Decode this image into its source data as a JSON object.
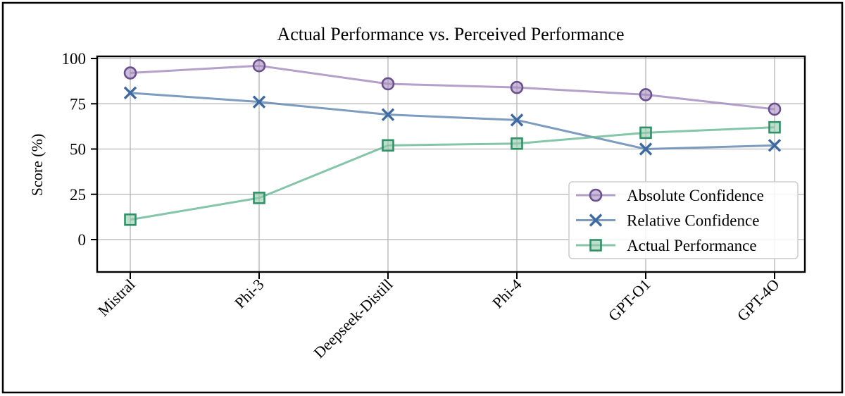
{
  "figure": {
    "background": "#ffffff",
    "border_color": "#000000",
    "grid_color": "#b5b5b5",
    "spine_color": "#000000"
  },
  "chart_data": {
    "type": "line",
    "title": "Actual Performance vs. Perceived Performance",
    "xlabel": "",
    "ylabel": "Score (%)",
    "categories": [
      "Mistral",
      "Phi-3",
      "Deepseek-Distill",
      "Phi-4",
      "GPT-O1",
      "GPT-4O"
    ],
    "yticks": [
      0,
      25,
      50,
      75,
      100
    ],
    "ylim": [
      -18,
      101
    ],
    "grid": true,
    "legend_position": "inside lower right",
    "series": [
      {
        "name": "Absolute Confidence",
        "marker": "circle",
        "line_color": "#a188bd",
        "marker_edge": "#6a4f8d",
        "marker_face": "#a98fc0",
        "values": [
          92,
          96,
          86,
          84,
          80,
          72
        ]
      },
      {
        "name": "Relative Confidence",
        "marker": "x",
        "line_color": "#5e83af",
        "marker_edge": "#3d69a1",
        "marker_face": "#3d69a1",
        "values": [
          81,
          76,
          69,
          66,
          50,
          52
        ]
      },
      {
        "name": "Actual Performance",
        "marker": "square",
        "line_color": "#67b694",
        "marker_edge": "#2e9268",
        "marker_face": "#94c9ad",
        "values": [
          11,
          23,
          52,
          53,
          59,
          62
        ]
      }
    ]
  }
}
